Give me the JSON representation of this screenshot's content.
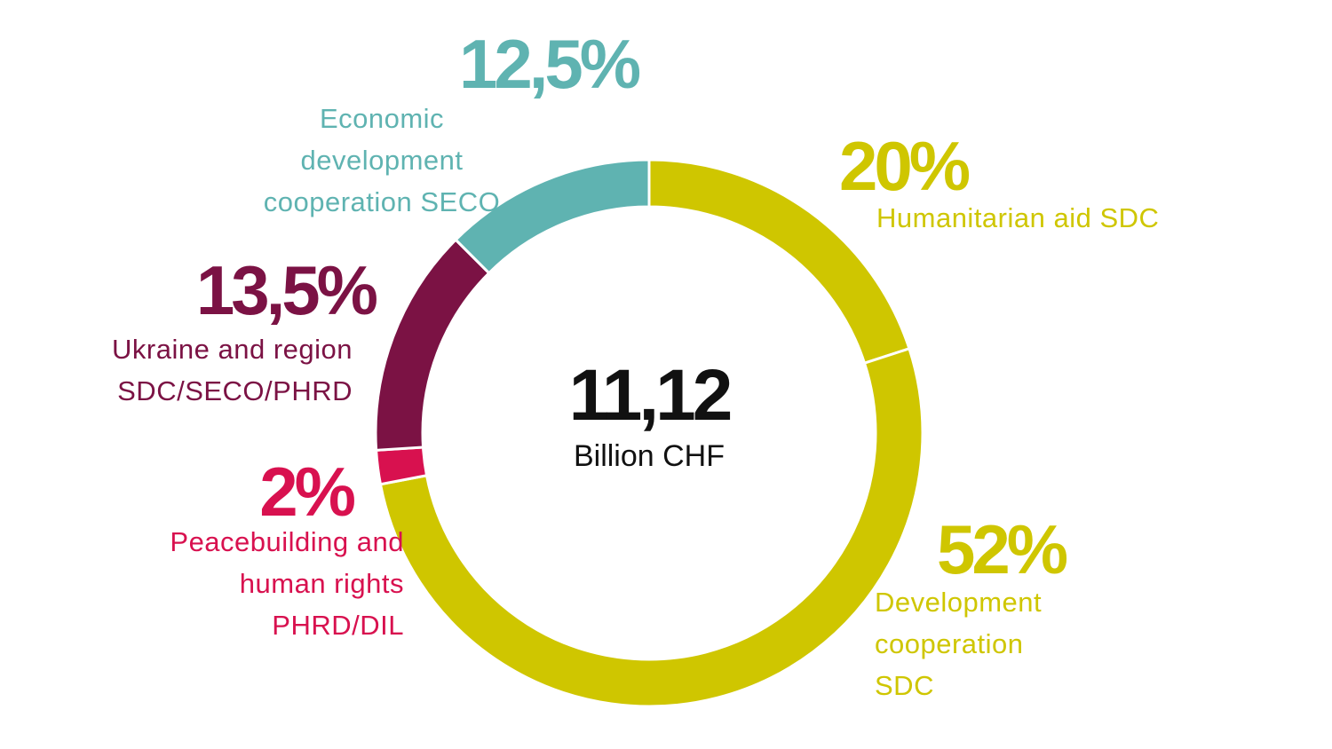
{
  "chart_data": {
    "type": "pie",
    "categories": [
      "Humanitarian aid SDC",
      "Development\ncooperation\nSDC",
      "Peacebuilding and\nhuman rights\nPHRD/DIL",
      "Ukraine and region\nSDC/SECO/PHRD",
      "Economic\ndevelopment\ncooperation SECO"
    ],
    "values": [
      20,
      52,
      2,
      13.5,
      12.5
    ],
    "value_labels": [
      "20%",
      "52%",
      "2%",
      "13,5%",
      "12,5%"
    ],
    "colors": [
      "#cfc600",
      "#cfc600",
      "#d8114f",
      "#7b1244",
      "#5fb3b1"
    ],
    "center_label": "11,12",
    "center_sublabel": "Billion CHF"
  }
}
